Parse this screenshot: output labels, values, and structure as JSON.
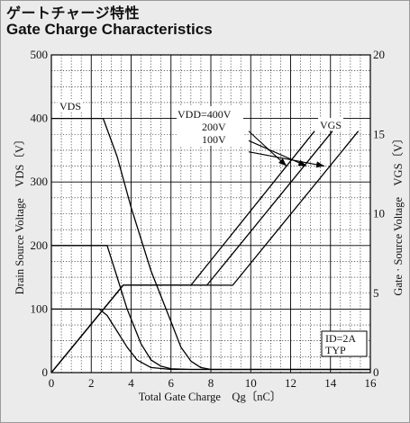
{
  "title_jp": "ゲートチャージ特性",
  "title_en": "Gate Charge Characteristics",
  "colors": {
    "background": "#ebebeb",
    "plot_bg": "#ffffff",
    "line": "#000000"
  },
  "chart_data": {
    "type": "line",
    "title": "Gate Charge Characteristics",
    "xlabel": "Total Gate Charge　Qg〔nC〕",
    "ylabel_left": "Drain Source Voltage　VDS〔V〕",
    "ylabel_right": "Gate · Source Voltage　VGS〔V〕",
    "xlim": [
      0,
      16
    ],
    "ylim_left": [
      0,
      500
    ],
    "ylim_right": [
      0,
      20
    ],
    "x_ticks": [
      "0",
      "2",
      "4",
      "6",
      "8",
      "10",
      "12",
      "14",
      "16"
    ],
    "y_ticks_left": [
      "0",
      "100",
      "200",
      "300",
      "400",
      "500"
    ],
    "y_ticks_right": [
      "0",
      "5",
      "10",
      "15",
      "20"
    ],
    "grid": true,
    "vds_label": "VDS",
    "vgs_label": "VGS",
    "vdd_label": "VDD=400V",
    "vdd_200": "200V",
    "vdd_100": "100V",
    "cond_line1": "ID=2A",
    "cond_line2": "TYP",
    "series": [
      {
        "name": "400V",
        "axis": "left",
        "x": [
          0,
          2.6,
          3.3,
          4.0,
          5.0,
          6.0,
          6.5,
          7.0,
          7.5,
          8.0,
          16
        ],
        "y": [
          400,
          400,
          340,
          260,
          160,
          80,
          40,
          18,
          8,
          5,
          5
        ]
      },
      {
        "name": "200V",
        "axis": "left",
        "x": [
          0,
          2.8,
          3.2,
          3.8,
          4.5,
          5.0,
          5.5,
          6.0,
          7.0,
          16
        ],
        "y": [
          200,
          200,
          160,
          100,
          45,
          20,
          10,
          6,
          5,
          5
        ]
      },
      {
        "name": "100V",
        "axis": "left",
        "x": [
          0,
          2.4,
          2.8,
          3.3,
          3.8,
          4.3,
          5.0,
          6.0,
          16
        ],
        "y": [
          100,
          100,
          90,
          65,
          40,
          20,
          8,
          5,
          5
        ]
      },
      {
        "name": "VGS 100V",
        "axis": "right",
        "x": [
          0,
          3.6,
          7.0,
          13.2
        ],
        "y": [
          0,
          5.5,
          5.5,
          15.2
        ]
      },
      {
        "name": "VGS 200V",
        "axis": "right",
        "x": [
          0,
          3.6,
          7.8,
          14.1
        ],
        "y": [
          0,
          5.5,
          5.5,
          15.2
        ]
      },
      {
        "name": "VGS 400V",
        "axis": "right",
        "x": [
          0,
          3.6,
          9.1,
          15.4
        ],
        "y": [
          0,
          5.5,
          5.5,
          15.2
        ]
      }
    ],
    "arrows": [
      {
        "from": [
          9.9,
          15.2
        ],
        "to": [
          11.8,
          13.0
        ]
      },
      {
        "from": [
          9.9,
          14.6
        ],
        "to": [
          12.8,
          13.0
        ]
      },
      {
        "from": [
          9.9,
          13.9
        ],
        "to": [
          13.7,
          13.0
        ]
      }
    ]
  }
}
